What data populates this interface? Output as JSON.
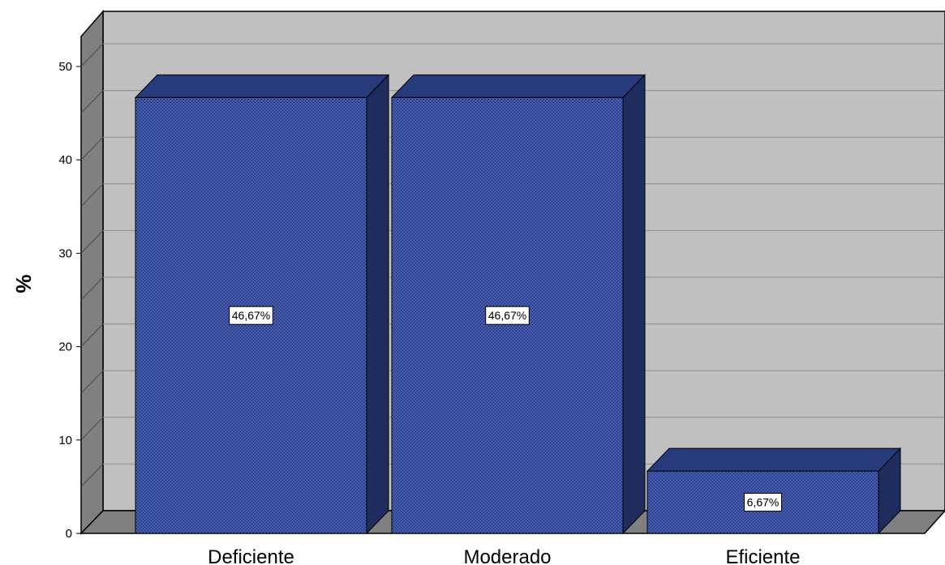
{
  "chart_data": {
    "type": "bar",
    "style": "3d",
    "categories": [
      "Deficiente",
      "Moderado",
      "Eficiente"
    ],
    "values": [
      46.67,
      46.67,
      6.67
    ],
    "data_labels": [
      "46,67%",
      "46,67%",
      "6,67%"
    ],
    "ylabel": "%",
    "xlabel": "",
    "ylim": [
      0,
      55
    ],
    "yticks": [
      0,
      10,
      20,
      30,
      40,
      50
    ],
    "grid": true,
    "colors": {
      "bar_front": "#3a4f9e",
      "bar_top": "#263a7c",
      "bar_side": "#1e2d5e",
      "back_wall": "#c0c0c0",
      "left_wall": "#808080",
      "floor": "#808080",
      "gridline": "#8c8c8c"
    }
  }
}
